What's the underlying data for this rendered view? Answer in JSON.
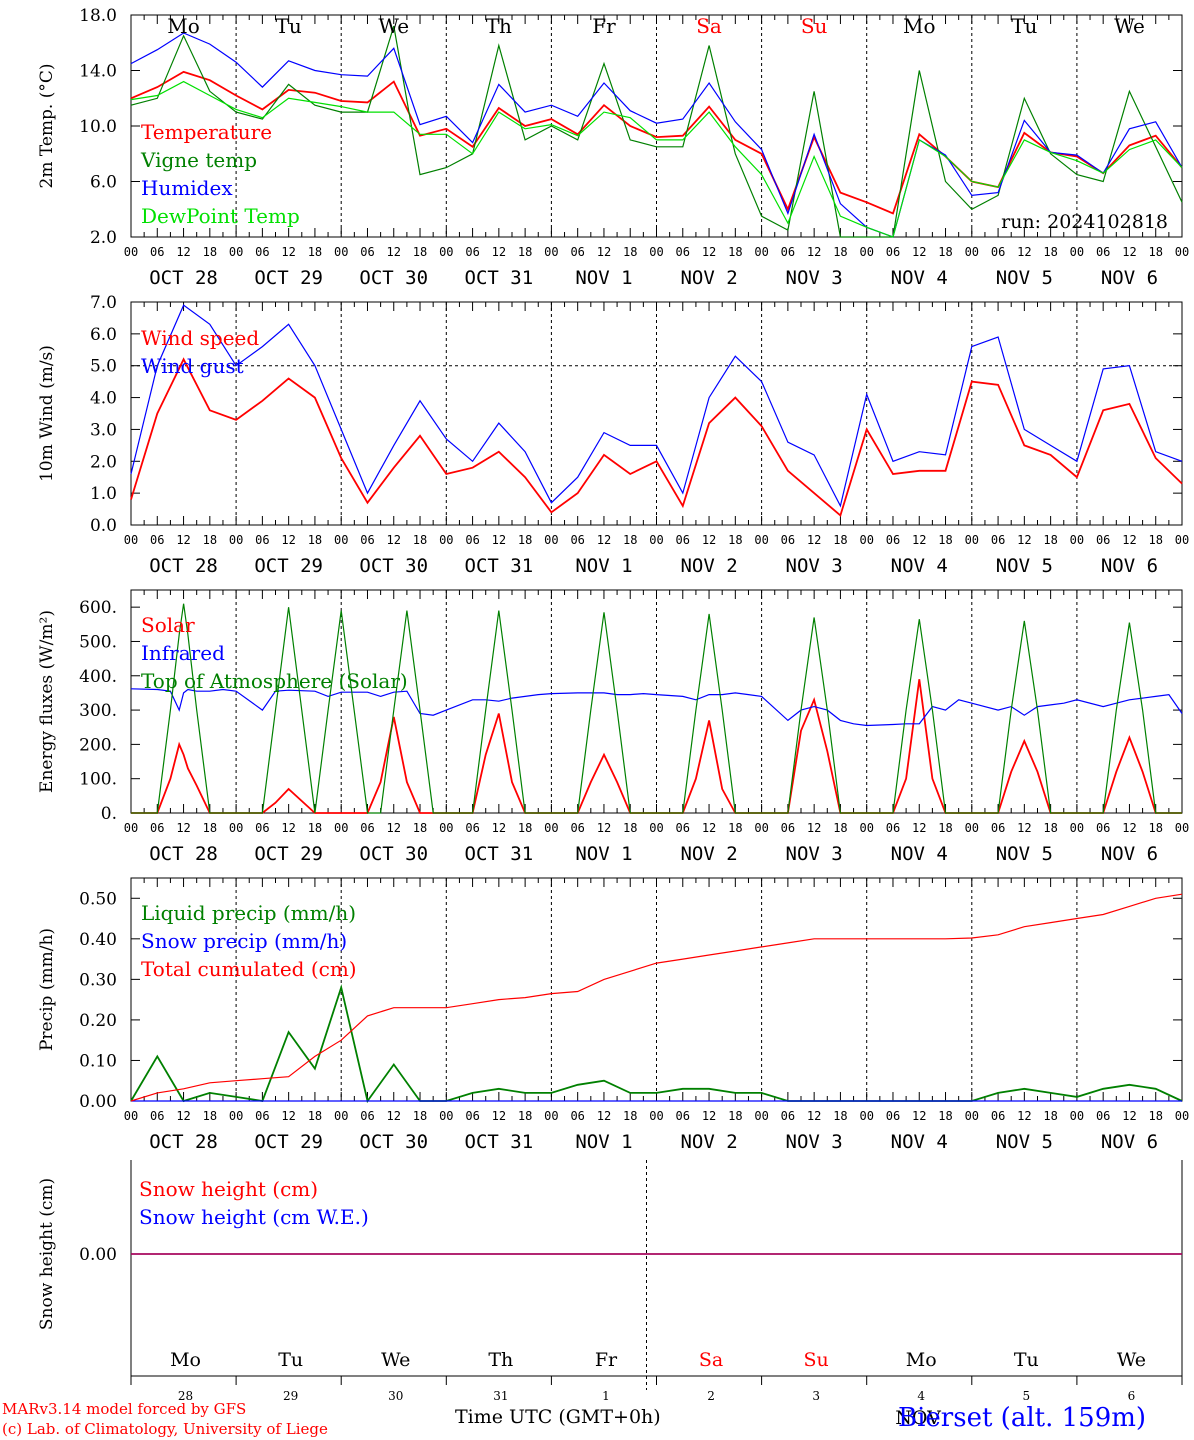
{
  "colors": {
    "red": "#ff0000",
    "green": "#008000",
    "blue": "#0000ff",
    "lightgreen": "#00e000",
    "purple": "#800080",
    "black": "#000000"
  },
  "day_names": [
    "Mo",
    "Tu",
    "We",
    "Th",
    "Fr",
    "Sa",
    "Su",
    "Mo",
    "Tu",
    "We"
  ],
  "day_name_colors": [
    "#000000",
    "#000000",
    "#000000",
    "#000000",
    "#000000",
    "#ff0000",
    "#ff0000",
    "#000000",
    "#000000",
    "#000000"
  ],
  "date_labels": [
    "OCT 28",
    "OCT 29",
    "OCT 30",
    "OCT 31",
    "NOV  1",
    "NOV  2",
    "NOV  3",
    "NOV  4",
    "NOV  5",
    "NOV  6"
  ],
  "hour_ticks": [
    "00",
    "06",
    "12",
    "18"
  ],
  "last_hour_tick": "00",
  "bottom_day_numbers": [
    "28",
    "29",
    "30",
    "31",
    "1",
    "2",
    "3",
    "4",
    "5",
    "6"
  ],
  "bottom_month_label": "NOV",
  "footer": {
    "credit_1": "MARv3.14 model forced by GFS",
    "credit_2": "(c) Lab. of Climatology, University of Liege",
    "xlabel": "Time UTC (GMT+0h)",
    "station": "Bierset (alt. 159m)"
  },
  "chart_data": [
    {
      "type": "line",
      "ylabel": "2m Temp. (°C)",
      "ylim": [
        2,
        18
      ],
      "yticks": [
        "2.0",
        "6.0",
        "10.0",
        "14.0",
        "18.0"
      ],
      "annotation": "run: 2024102818",
      "x_hours": [
        0,
        6,
        12,
        18,
        24,
        30,
        36,
        42,
        48,
        54,
        60,
        66,
        72,
        78,
        84,
        90,
        96,
        102,
        108,
        114,
        120,
        126,
        132,
        138,
        144,
        150,
        156,
        162,
        168,
        174,
        180,
        186,
        192,
        198,
        204,
        210,
        216,
        222,
        228,
        234,
        240
      ],
      "series": [
        {
          "name": "Temperature",
          "color": "#ff0000",
          "values": [
            12.0,
            12.8,
            13.9,
            13.3,
            12.2,
            11.2,
            12.6,
            12.4,
            11.8,
            11.7,
            13.2,
            9.3,
            9.8,
            8.5,
            11.3,
            10.0,
            10.5,
            9.4,
            11.5,
            10.0,
            9.2,
            9.3,
            11.4,
            9.0,
            8.0,
            4.0,
            9.2,
            5.2,
            4.5,
            3.7,
            9.4,
            7.8,
            6.0,
            5.6,
            9.5,
            8.1,
            7.8,
            6.6,
            8.6,
            9.3,
            7.0
          ]
        },
        {
          "name": "Vigne temp",
          "color": "#008000",
          "values": [
            11.5,
            12.0,
            16.5,
            12.5,
            11.0,
            10.5,
            13.0,
            11.5,
            11.0,
            11.0,
            17.2,
            6.5,
            7.0,
            8.0,
            15.8,
            9.0,
            10.0,
            9.0,
            14.5,
            9.0,
            8.5,
            8.5,
            15.8,
            8.0,
            3.5,
            2.5,
            12.5,
            1.5,
            1.5,
            1.0,
            14.0,
            6.0,
            4.0,
            5.0,
            12.0,
            8.0,
            6.5,
            6.0,
            12.5,
            8.5,
            4.5
          ]
        },
        {
          "name": "Humidex",
          "color": "#0000ff",
          "values": [
            14.5,
            15.5,
            16.7,
            15.9,
            14.6,
            12.8,
            14.7,
            14.0,
            13.7,
            13.6,
            15.6,
            10.1,
            10.7,
            8.8,
            13.0,
            11.0,
            11.5,
            10.7,
            13.1,
            11.1,
            10.2,
            10.5,
            13.1,
            10.3,
            8.3,
            3.7,
            9.4,
            4.4,
            2.7,
            2.0,
            9.0,
            7.9,
            5.0,
            5.2,
            10.4,
            8.1,
            7.9,
            6.6,
            9.8,
            10.3,
            7.0
          ]
        },
        {
          "name": "DewPoint Temp",
          "color": "#00e000",
          "values": [
            11.9,
            12.2,
            13.2,
            12.2,
            11.2,
            10.6,
            12.0,
            11.7,
            11.4,
            11.0,
            11.0,
            9.4,
            9.4,
            8.0,
            11.0,
            9.8,
            10.1,
            9.3,
            11.0,
            10.6,
            9.0,
            9.0,
            11.0,
            8.5,
            6.5,
            3.0,
            7.8,
            3.5,
            2.7,
            1.8,
            9.0,
            7.8,
            6.0,
            5.6,
            9.0,
            8.1,
            7.5,
            6.6,
            8.3,
            9.0,
            7.0
          ]
        }
      ]
    },
    {
      "type": "line",
      "ylabel": "10m Wind (m/s)",
      "ylim": [
        0,
        7
      ],
      "yticks": [
        "0.0",
        "1.0",
        "2.0",
        "3.0",
        "4.0",
        "5.0",
        "6.0",
        "7.0"
      ],
      "refline": 5,
      "x_hours": [
        0,
        6,
        12,
        18,
        24,
        30,
        36,
        42,
        48,
        54,
        60,
        66,
        72,
        78,
        84,
        90,
        96,
        102,
        108,
        114,
        120,
        126,
        132,
        138,
        144,
        150,
        156,
        162,
        168,
        174,
        180,
        186,
        192,
        198,
        204,
        210,
        216,
        222,
        228,
        234,
        240
      ],
      "series": [
        {
          "name": "Wind speed",
          "color": "#ff0000",
          "values": [
            0.8,
            3.5,
            5.2,
            3.6,
            3.3,
            3.9,
            4.6,
            4.0,
            2.1,
            0.7,
            1.8,
            2.8,
            1.6,
            1.8,
            2.3,
            1.5,
            0.4,
            1.0,
            2.2,
            1.6,
            2.0,
            0.6,
            3.2,
            4.0,
            3.1,
            1.7,
            1.0,
            0.3,
            3.0,
            1.6,
            1.7,
            1.7,
            4.5,
            4.4,
            2.5,
            2.2,
            1.5,
            3.6,
            3.8,
            2.1,
            1.3
          ]
        },
        {
          "name": "Wind gust",
          "color": "#0000ff",
          "values": [
            1.6,
            5.0,
            6.9,
            6.3,
            5.0,
            5.6,
            6.3,
            5.0,
            3.0,
            1.0,
            2.5,
            3.9,
            2.7,
            2.0,
            3.2,
            2.3,
            0.7,
            1.5,
            2.9,
            2.5,
            2.5,
            1.0,
            4.0,
            5.3,
            4.5,
            2.6,
            2.2,
            0.6,
            4.1,
            2.0,
            2.3,
            2.2,
            5.6,
            5.9,
            3.0,
            2.5,
            2.0,
            4.9,
            5.0,
            2.3,
            2.0
          ]
        }
      ]
    },
    {
      "type": "line",
      "ylabel": "Energy fluxes (W/m²)",
      "ylim": [
        0,
        650
      ],
      "yticks": [
        "0.",
        "100.",
        "200.",
        "300.",
        "400.",
        "500.",
        "600."
      ],
      "x_hours": [
        0,
        6,
        9,
        11,
        12,
        13,
        15,
        18,
        21,
        24,
        30,
        33,
        36,
        42,
        45,
        48,
        54,
        57,
        60,
        63,
        66,
        69,
        72,
        78,
        81,
        84,
        87,
        90,
        93,
        96,
        102,
        105,
        108,
        111,
        114,
        117,
        120,
        126,
        129,
        132,
        135,
        138,
        141,
        144,
        150,
        153,
        156,
        159,
        162,
        165,
        168,
        174,
        177,
        180,
        183,
        186,
        189,
        192,
        198,
        201,
        204,
        207,
        210,
        213,
        216,
        222,
        225,
        228,
        231,
        234,
        237,
        240
      ],
      "series": [
        {
          "name": "Solar",
          "color": "#ff0000",
          "values": [
            0,
            0,
            100,
            200,
            170,
            130,
            80,
            0,
            0,
            0,
            0,
            30,
            70,
            0,
            0,
            0,
            0,
            90,
            280,
            90,
            0,
            0,
            0,
            0,
            170,
            290,
            90,
            0,
            0,
            0,
            0,
            90,
            170,
            90,
            0,
            0,
            0,
            0,
            100,
            270,
            70,
            0,
            0,
            0,
            0,
            240,
            330,
            180,
            0,
            0,
            0,
            0,
            100,
            390,
            100,
            0,
            0,
            0,
            0,
            120,
            210,
            120,
            0,
            0,
            0,
            0,
            120,
            220,
            120,
            0,
            0,
            0
          ]
        },
        {
          "name": "Infrared",
          "color": "#0000ff",
          "values": [
            362,
            360,
            355,
            300,
            350,
            360,
            355,
            355,
            360,
            355,
            300,
            355,
            358,
            355,
            340,
            352,
            352,
            340,
            352,
            355,
            290,
            285,
            300,
            330,
            330,
            326,
            335,
            340,
            345,
            348,
            350,
            350,
            350,
            345,
            345,
            348,
            345,
            340,
            330,
            345,
            345,
            350,
            345,
            340,
            270,
            300,
            310,
            300,
            270,
            260,
            255,
            258,
            260,
            260,
            310,
            300,
            330,
            320,
            300,
            310,
            285,
            310,
            315,
            320,
            330,
            310,
            320,
            330,
            335,
            340,
            345,
            290
          ]
        },
        {
          "name": "Top of Atmosphere (Solar)",
          "color": "#008000",
          "values": [
            0,
            0,
            300,
            520,
            610,
            520,
            300,
            0,
            0,
            0,
            0,
            300,
            600,
            0,
            300,
            590,
            0,
            0,
            300,
            590,
            300,
            0,
            0,
            0,
            300,
            590,
            300,
            0,
            0,
            0,
            0,
            300,
            585,
            300,
            0,
            0,
            0,
            0,
            300,
            580,
            300,
            0,
            0,
            0,
            0,
            300,
            570,
            300,
            0,
            0,
            0,
            0,
            300,
            565,
            300,
            0,
            0,
            0,
            0,
            300,
            560,
            300,
            0,
            0,
            0,
            0,
            300,
            555,
            300,
            0,
            0,
            0
          ]
        }
      ]
    },
    {
      "type": "line",
      "ylabel": "Precip (mm/h)",
      "ylim": [
        0,
        0.55
      ],
      "yticks": [
        "0.00",
        "0.10",
        "0.20",
        "0.30",
        "0.40",
        "0.50"
      ],
      "x_hours": [
        0,
        6,
        12,
        18,
        24,
        30,
        36,
        42,
        48,
        54,
        60,
        66,
        72,
        78,
        84,
        90,
        96,
        102,
        108,
        114,
        120,
        126,
        132,
        138,
        144,
        150,
        156,
        162,
        168,
        174,
        180,
        186,
        192,
        198,
        204,
        210,
        216,
        222,
        228,
        234,
        240
      ],
      "series": [
        {
          "name": "Liquid precip (mm/h)",
          "color": "#008000",
          "values": [
            0.0,
            0.11,
            0.0,
            0.02,
            0.01,
            0.0,
            0.17,
            0.08,
            0.28,
            0.0,
            0.09,
            0.0,
            0.0,
            0.02,
            0.03,
            0.02,
            0.02,
            0.04,
            0.05,
            0.02,
            0.02,
            0.03,
            0.03,
            0.02,
            0.02,
            0.0,
            0.0,
            0.0,
            0.0,
            0.0,
            0.0,
            0.0,
            0.0,
            0.02,
            0.03,
            0.02,
            0.01,
            0.03,
            0.04,
            0.03,
            0.0
          ]
        },
        {
          "name": "Snow precip (mm/h)",
          "color": "#0000ff",
          "values": [
            0,
            0,
            0,
            0,
            0,
            0,
            0,
            0,
            0,
            0,
            0,
            0,
            0,
            0,
            0,
            0,
            0,
            0,
            0,
            0,
            0,
            0,
            0,
            0,
            0,
            0,
            0,
            0,
            0,
            0,
            0,
            0,
            0,
            0,
            0,
            0,
            0,
            0,
            0,
            0,
            0
          ]
        },
        {
          "name": "Total cumulated (cm)",
          "color": "#ff0000",
          "values": [
            0.0,
            0.02,
            0.03,
            0.045,
            0.05,
            0.055,
            0.06,
            0.11,
            0.15,
            0.21,
            0.23,
            0.23,
            0.23,
            0.24,
            0.25,
            0.255,
            0.265,
            0.27,
            0.3,
            0.32,
            0.34,
            0.35,
            0.36,
            0.37,
            0.38,
            0.39,
            0.4,
            0.4,
            0.4,
            0.4,
            0.4,
            0.4,
            0.402,
            0.41,
            0.43,
            0.44,
            0.45,
            0.46,
            0.48,
            0.5,
            0.51
          ]
        }
      ]
    },
    {
      "type": "line",
      "ylabel": "Snow height (cm)",
      "yticks": [
        "0.00"
      ],
      "series": [
        {
          "name": "Snow height (cm)",
          "color": "#ff0000",
          "values": [
            0,
            0
          ]
        },
        {
          "name": "Snow height (cm W.E.)",
          "color": "#0000ff",
          "values": [
            0,
            0
          ]
        }
      ]
    }
  ]
}
